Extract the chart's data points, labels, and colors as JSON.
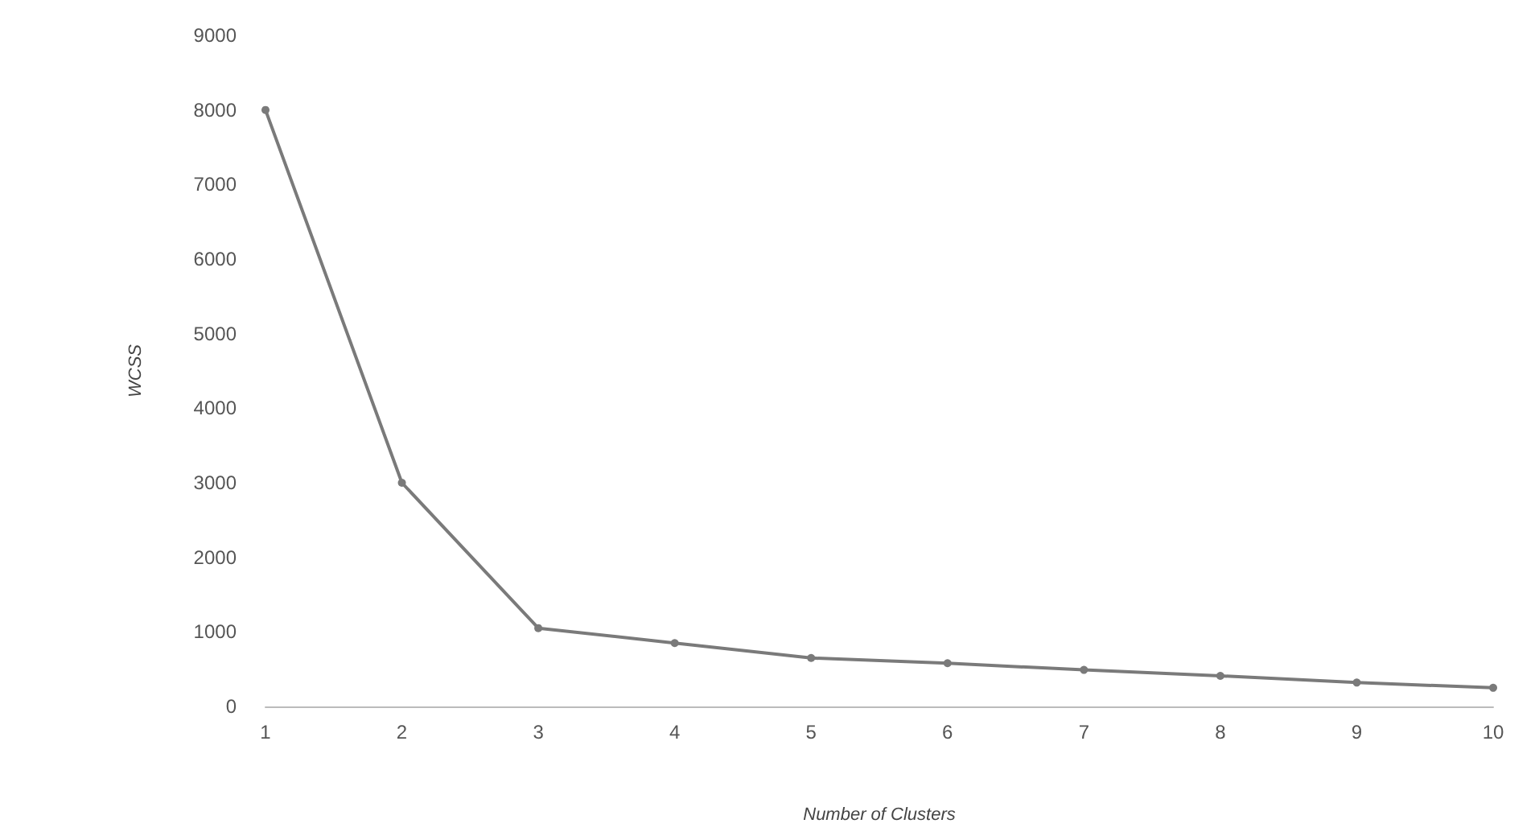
{
  "chart_data": {
    "type": "line",
    "xlabel": "Number of Clusters",
    "ylabel": "WCSS",
    "categories": [
      "1",
      "2",
      "3",
      "4",
      "5",
      "6",
      "7",
      "8",
      "9",
      "10"
    ],
    "series": [
      {
        "color": "#7a7a7a",
        "values": [
          8000,
          3000,
          1050,
          850,
          650,
          580,
          490,
          410,
          320,
          250
        ]
      }
    ],
    "ylim": [
      0,
      9000
    ],
    "yticks": [
      0,
      1000,
      2000,
      3000,
      4000,
      5000,
      6000,
      7000,
      8000,
      9000
    ],
    "grid": false,
    "marker": "circle",
    "line_style": "solid"
  }
}
